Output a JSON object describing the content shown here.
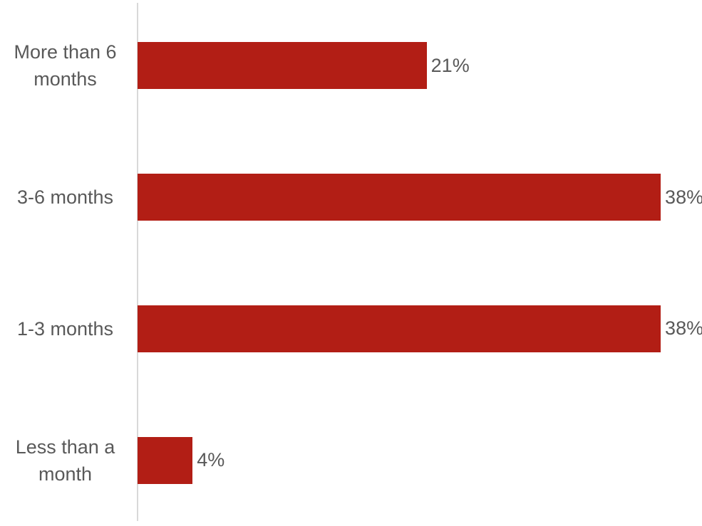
{
  "chart_data": {
    "type": "bar",
    "orientation": "horizontal",
    "categories": [
      "More than 6 months",
      "3-6 months",
      "1-3 months",
      "Less than a month"
    ],
    "values": [
      21,
      38,
      38,
      4
    ],
    "value_labels": [
      "21%",
      "38%",
      "38%",
      "4%"
    ],
    "title": "",
    "xlabel": "",
    "ylabel": "",
    "xlim": [
      0,
      40
    ],
    "grid": false,
    "legend": false,
    "bar_color": "#B21E15",
    "label_color": "#595959",
    "axis_line_color": "#D9D9D9",
    "background_color": "#FFFFFF"
  }
}
